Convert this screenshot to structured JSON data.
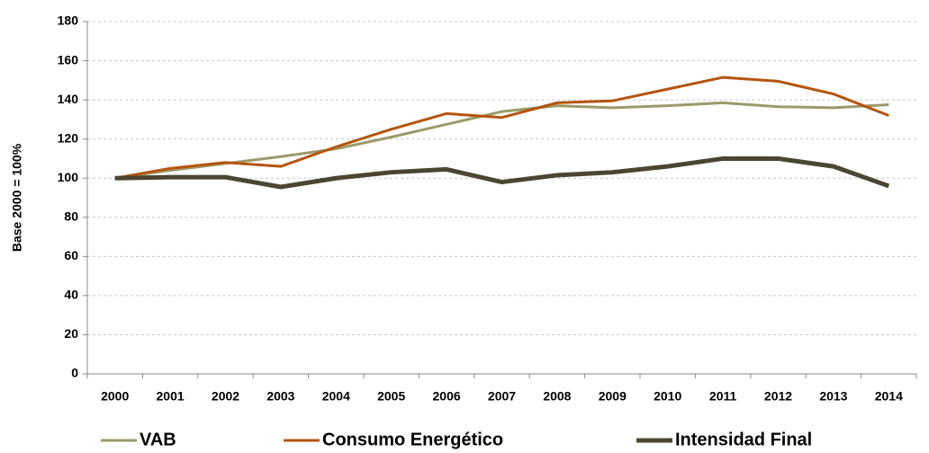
{
  "chart_data": {
    "type": "line",
    "y_label": "Base 2000 = 100%",
    "categories": [
      "2000",
      "2001",
      "2002",
      "2003",
      "2004",
      "2005",
      "2006",
      "2007",
      "2008",
      "2009",
      "2010",
      "2011",
      "2012",
      "2013",
      "2014"
    ],
    "series": [
      {
        "name": "VAB",
        "color": "#9c9a6a",
        "values": [
          100,
          104,
          107.5,
          111,
          115,
          121,
          127.5,
          134,
          137,
          136,
          137,
          138.5,
          136.5,
          136,
          137.5
        ]
      },
      {
        "name": "Consumo Energético",
        "color": "#b5540f",
        "values": [
          100,
          105,
          108,
          106,
          116,
          125,
          133,
          131,
          138.5,
          139.5,
          145.5,
          151.5,
          149.5,
          143,
          132
        ]
      },
      {
        "name": "Intensidad Final",
        "color": "#4a4632",
        "values": [
          100,
          100.5,
          100.5,
          95.5,
          100,
          103,
          104.5,
          98,
          101.5,
          103,
          106,
          110,
          110,
          106,
          96
        ]
      }
    ],
    "ylim": [
      0,
      180
    ],
    "yticks": [
      0,
      20,
      40,
      60,
      80,
      100,
      120,
      140,
      160,
      180
    ],
    "grid": true,
    "legend": "bottom"
  }
}
